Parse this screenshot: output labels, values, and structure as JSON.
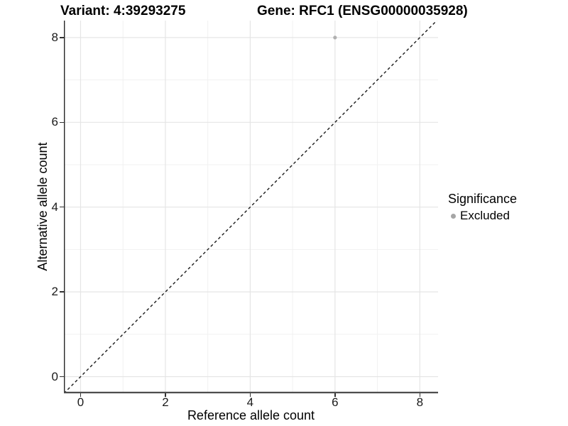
{
  "chart_data": {
    "type": "scatter",
    "title_left": "Variant: 4:39293275",
    "title_right": "Gene: RFC1 (ENSG00000035928)",
    "xlabel": "Reference allele count",
    "ylabel": "Alternative allele count",
    "xlim": [
      -0.393,
      8.43
    ],
    "ylim": [
      -0.393,
      8.4
    ],
    "x_ticks": [
      0,
      2,
      4,
      6,
      8
    ],
    "y_ticks": [
      0,
      2,
      4,
      6,
      8
    ],
    "x_minor_ticks": [
      1,
      3,
      5,
      7
    ],
    "y_minor_ticks": [
      1,
      3,
      5,
      7
    ],
    "grid": "major+minor",
    "series": [
      {
        "name": "Excluded",
        "color": "#b0b0b0",
        "points": [
          [
            6,
            8
          ]
        ]
      }
    ],
    "reference_line": {
      "kind": "identity y=x",
      "style": "dashed",
      "color": "#1a1a1a"
    },
    "legend": {
      "title": "Significance",
      "position": "right",
      "entries": [
        {
          "label": "Excluded",
          "color": "#a6a6a6"
        }
      ]
    },
    "colors": {
      "grid_major": "#e5e5e5",
      "grid_minor": "#f1f1f1",
      "axis_line_x": "#4d4d4d",
      "axis_line_y": "#262626"
    }
  }
}
